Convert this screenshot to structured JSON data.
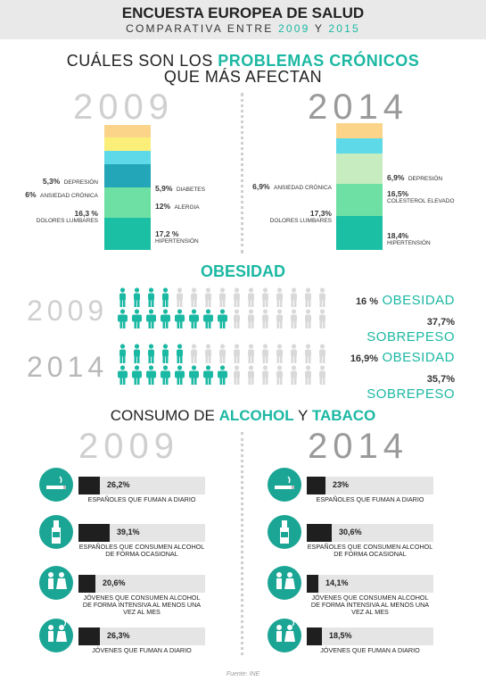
{
  "header": {
    "title": "ENCUESTA EUROPEA DE SALUD",
    "subtitle_pre": "COMPARATIVA ENTRE",
    "year_a": "2009",
    "subtitle_mid": "Y",
    "year_b": "2015"
  },
  "chronic": {
    "title_pre": "CUÁLES SON LOS",
    "title_hl": "PROBLEMAS CRÓNICOS",
    "title_line2": "QUE MÁS AFECTAN",
    "year_left": "2009",
    "year_right": "2014",
    "left": {
      "segments": [
        {
          "pct": 5.3,
          "color": "#fbd48a"
        },
        {
          "pct": 5.9,
          "color": "#fbef7a"
        },
        {
          "pct": 6,
          "color": "#5ed9e8"
        },
        {
          "pct": 12,
          "color": "#22a6b8"
        },
        {
          "pct": 16.3,
          "color": "#6fe0a3"
        },
        {
          "pct": 17.2,
          "color": "#1bbfa4"
        }
      ],
      "labels": [
        {
          "pct": "5,3%",
          "text": "DEPRESIÓN"
        },
        {
          "pct": "5,9%",
          "text": "DIABETES"
        },
        {
          "pct": "6%",
          "text": "ANSIEDAD CRÓNICA"
        },
        {
          "pct": "12%",
          "text": "ALERGIA"
        },
        {
          "pct": "16,3 %",
          "text": "DOLORES LUMBARES"
        },
        {
          "pct": "17,2 %",
          "text": "HIPERTENSIÓN"
        }
      ]
    },
    "right": {
      "segments": [
        {
          "pct": 6.9,
          "color": "#fbd48a"
        },
        {
          "pct": 6.9,
          "color": "#5ed9e8"
        },
        {
          "pct": 16.5,
          "color": "#c6ecc0"
        },
        {
          "pct": 17.3,
          "color": "#6fe0a3"
        },
        {
          "pct": 18.4,
          "color": "#1bbfa4"
        }
      ],
      "labels": [
        {
          "pct": "6,9%",
          "text": "DEPRESIÓN"
        },
        {
          "pct": "6,9%",
          "text": "ANSIEDAD CRÓNICA"
        },
        {
          "pct": "16,5%",
          "text": "COLESTEROL ELEVADO"
        },
        {
          "pct": "17,3%",
          "text": "DOLORES LUMBARES"
        },
        {
          "pct": "18,4%",
          "text": "HIPERTENSIÓN"
        }
      ]
    }
  },
  "obesity": {
    "title": "OBESIDAD",
    "rows": [
      {
        "year": "2009",
        "obes_pct": "16 %",
        "obes_label": "OBESIDAD",
        "over_pct": "37,7%",
        "over_label": "SOBREPESO",
        "obes_icons": 4,
        "over_icons": 8
      },
      {
        "year": "2014",
        "obes_pct": "16,9%",
        "obes_label": "OBESIDAD",
        "over_pct": "35,7%",
        "over_label": "SOBREPESO",
        "obes_icons": 5,
        "over_icons": 8
      }
    ],
    "colors": {
      "filled": "#1bb8a3",
      "empty": "#d9d9d9"
    }
  },
  "alcohol": {
    "title_pre": "CONSUMO DE",
    "title_hl1": "ALCOHOL",
    "title_mid": "Y",
    "title_hl2": "TABACO",
    "year_left": "2009",
    "year_right": "2014",
    "left": [
      {
        "value": 26.2,
        "label_val": "26,2%",
        "text": "ESPAÑOLES QUE FUMAN A DIARIO",
        "icon": "cigarette-icon"
      },
      {
        "value": 39.1,
        "label_val": "39,1%",
        "text": "ESPAÑOLES QUE CONSUMEN ALCOHOL DE FORMA OCASIONAL",
        "icon": "bottle-icon"
      },
      {
        "value": 20.6,
        "label_val": "20,6%",
        "text": "JÓVENES QUE CONSUMEN ALCOHOL DE FORMA INTENSIVA AL MENOS UNA VEZ AL MES",
        "icon": "young-drinking-icon"
      },
      {
        "value": 26.3,
        "label_val": "26,3%",
        "text": "JÓVENES QUE FUMAN A DIARIO",
        "icon": "young-smoking-icon"
      }
    ],
    "right": [
      {
        "value": 23,
        "label_val": "23%",
        "text": "ESPAÑOLES QUE FUMAN A DIARIO",
        "icon": "cigarette-icon"
      },
      {
        "value": 30.6,
        "label_val": "30,6%",
        "text": "ESPAÑOLES QUE CONSUMEN ALCOHOL DE FORMA OCASIONAL",
        "icon": "bottle-icon"
      },
      {
        "value": 14.1,
        "label_val": "14,1%",
        "text": "JÓVENES QUE CONSUMEN ALCOHOL DE FORMA INTENSIVA AL MENOS UNA VEZ AL MES",
        "icon": "young-drinking-icon"
      },
      {
        "value": 18.5,
        "label_val": "18,5%",
        "text": "JÓVENES QUE FUMAN A DIARIO",
        "icon": "young-smoking-icon"
      }
    ]
  },
  "source": "Fuente: INE",
  "chart_data": [
    {
      "type": "bar",
      "title": "CUÁLES SON LOS PROBLEMAS CRÓNICOS QUE MÁS AFECTAN",
      "categories": [
        "DEPRESIÓN",
        "DIABETES",
        "ANSIEDAD CRÓNICA",
        "ALERGIA",
        "DOLORES LUMBARES",
        "HIPERTENSIÓN",
        "COLESTEROL ELEVADO"
      ],
      "series": [
        {
          "name": "2009",
          "values": [
            5.3,
            5.9,
            6,
            12,
            16.3,
            17.2,
            null
          ]
        },
        {
          "name": "2014",
          "values": [
            6.9,
            null,
            6.9,
            null,
            17.3,
            18.4,
            16.5
          ]
        }
      ]
    },
    {
      "type": "bar",
      "title": "OBESIDAD",
      "categories": [
        "OBESIDAD",
        "SOBREPESO"
      ],
      "series": [
        {
          "name": "2009",
          "values": [
            16,
            37.7
          ]
        },
        {
          "name": "2014",
          "values": [
            16.9,
            35.7
          ]
        }
      ]
    },
    {
      "type": "bar",
      "title": "CONSUMO DE ALCOHOL Y TABACO",
      "categories": [
        "ESPAÑOLES QUE FUMAN A DIARIO",
        "ESPAÑOLES QUE CONSUMEN ALCOHOL DE FORMA OCASIONAL",
        "JÓVENES QUE CONSUMEN ALCOHOL DE FORMA INTENSIVA AL MENOS UNA VEZ AL MES",
        "JÓVENES QUE FUMAN A DIARIO"
      ],
      "series": [
        {
          "name": "2009",
          "values": [
            26.2,
            39.1,
            20.6,
            26.3
          ]
        },
        {
          "name": "2014",
          "values": [
            23,
            30.6,
            14.1,
            18.5
          ]
        }
      ]
    }
  ]
}
